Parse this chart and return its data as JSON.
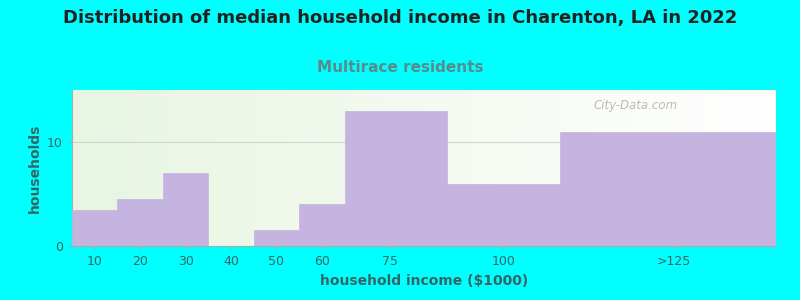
{
  "title": "Distribution of median household income in Charenton, LA in 2022",
  "subtitle": "Multirace residents",
  "xlabel": "household income ($1000)",
  "ylabel": "households",
  "background_color": "#00FFFF",
  "plot_bg_color_left": "#e8f5e2",
  "plot_bg_color_right": "#ffffff",
  "bar_color": "#c5b3e0",
  "categories": [
    "10",
    "20",
    "30",
    "40",
    "50",
    "60",
    "75",
    "100",
    ">125"
  ],
  "values": [
    3.5,
    4.5,
    7.0,
    0.0,
    1.5,
    4.0,
    13.0,
    6.0,
    11.0
  ],
  "ylim": [
    0,
    15
  ],
  "yticks": [
    0,
    10
  ],
  "title_fontsize": 13,
  "subtitle_fontsize": 11,
  "subtitle_color": "#5a8a8a",
  "axis_label_fontsize": 10,
  "tick_fontsize": 9,
  "watermark": "City-Data.com",
  "grid_color": "#cccccc",
  "grid_alpha": 0.8,
  "title_color": "#222222",
  "tick_color": "#336666"
}
